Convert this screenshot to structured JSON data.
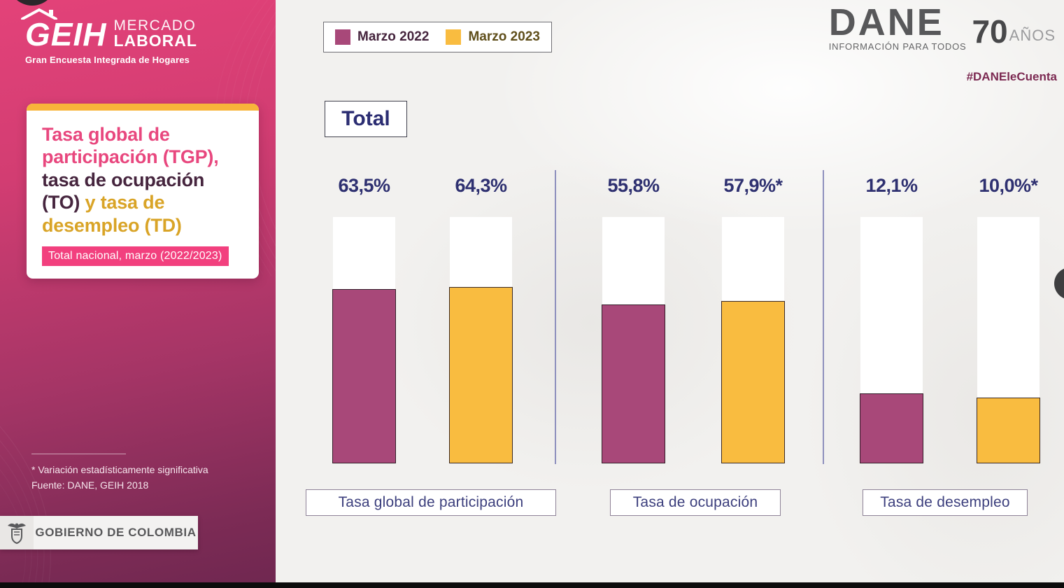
{
  "sidebar": {
    "logo": {
      "geih": "GEIH",
      "line1": "MERCADO",
      "line2": "LABORAL",
      "tagline": "Gran Encuesta Integrada de Hogares"
    },
    "card": {
      "title_segments": [
        {
          "text": "Tasa global de participación (TGP), ",
          "color": "#e8477e"
        },
        {
          "text": "tasa de ocupación (TO) ",
          "color": "#46253e"
        },
        {
          "text": "y tasa de desempleo (TD)",
          "color": "#d9a427"
        }
      ],
      "badge": "Total nacional, marzo (2022/2023)"
    },
    "footnote_line1": "* Variación estadísticamente significativa",
    "footnote_line2": "Fuente: DANE, GEIH 2018",
    "government_badge": "GOBIERNO DE COLOMBIA"
  },
  "header": {
    "legend": [
      {
        "label": "Marzo 2022",
        "swatch_color": "#a84879",
        "text_color": "#46253e"
      },
      {
        "label": "Marzo 2023",
        "swatch_color": "#f9bc40",
        "text_color": "#5f4e1a"
      }
    ],
    "dane_logo": {
      "name": "DANE",
      "subtitle": "INFORMACIÓN PARA TODOS",
      "anniversary_number": "70",
      "anniversary_label": "AÑOS"
    },
    "hashtag": "#DANEleCuenta"
  },
  "section_label": "Total",
  "chart_data": {
    "type": "bar",
    "title": "Tasa global de participación (TGP), tasa de ocupación (TO) y tasa de desempleo (TD) — Total nacional, marzo (2022/2023)",
    "categories": [
      "Tasa global de participación",
      "Tasa de ocupación",
      "Tasa de desempleo"
    ],
    "series": [
      {
        "name": "Marzo 2022",
        "color": "#a84879",
        "values": [
          63.5,
          55.8,
          12.1
        ],
        "labels": [
          "63,5%",
          "55,8%",
          "12,1%"
        ]
      },
      {
        "name": "Marzo 2023",
        "color": "#f9bc40",
        "values": [
          64.3,
          57.9,
          10.0
        ],
        "labels": [
          "64,3%",
          "57,9%*",
          "10,0%*"
        ]
      }
    ],
    "value_suffix": "%",
    "note": "* Variación estadísticamente significativa",
    "source": "Fuente: DANE, GEIH 2018",
    "legend_position": "top-left",
    "grid": false,
    "ylim": [
      0,
      100
    ],
    "visual_fill_pct": [
      [
        70.7,
        64.5,
        28.4
      ],
      [
        71.6,
        65.9,
        26.7
      ]
    ]
  },
  "colors": {
    "sidebar_gradient_top": "#e34279",
    "sidebar_gradient_bottom": "#6f2750",
    "value_text": "#2e3070",
    "card_accent": "#f8b43a",
    "badge_pink": "#f2407e",
    "hashtag_maroon": "#7c2a52",
    "divider": "#8e90bd"
  }
}
